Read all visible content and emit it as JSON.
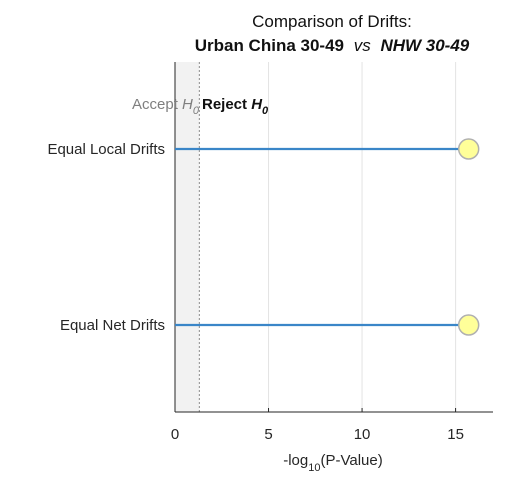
{
  "chart_data": {
    "type": "scatter",
    "title": {
      "line1": "Comparison of Drifts:",
      "group1": "Urban China 30-49",
      "vs": "vs",
      "group2": "NHW 30-49"
    },
    "xlabel": {
      "prefix": "-log",
      "subscript": "10",
      "suffix": "(P-Value)"
    },
    "xlim": [
      0,
      17
    ],
    "xticks": [
      0,
      5,
      10,
      15
    ],
    "grid": true,
    "threshold": 1.301,
    "regions": {
      "accept": {
        "text": "Accept ",
        "symbol": "H",
        "subscript": "0"
      },
      "reject": {
        "text": "Reject ",
        "symbol": "H",
        "subscript": "0"
      }
    },
    "categories": [
      "Equal Local Drifts",
      "Equal Net Drifts"
    ],
    "values": [
      15.7,
      15.7
    ],
    "colors": {
      "line": "#3a86c8",
      "marker_fill": "#ffff99",
      "marker_stroke": "#b0b0b0",
      "accept_shade": "#f2f2f2",
      "grid": "#e3e3e3",
      "axis": "#262626",
      "accept_text": "#7f7f7f",
      "reject_text": "#111111"
    }
  }
}
